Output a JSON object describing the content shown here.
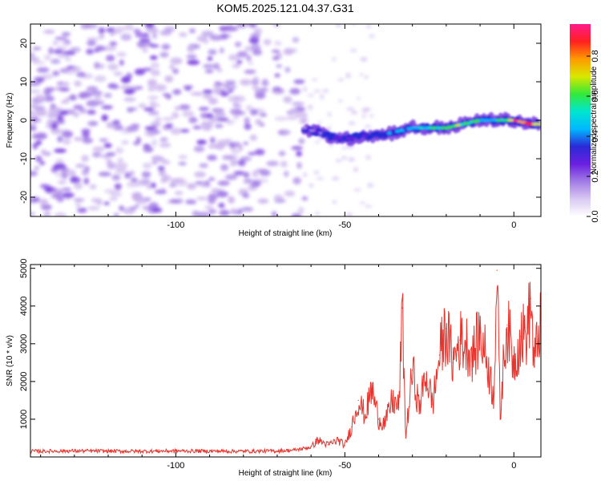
{
  "title": "KOM5.2025.121.04.37.G31",
  "colors": {
    "snr_line": "#e8342c",
    "blob_light": "#cdb6ee",
    "blob_mid": "#a27ce6",
    "blob_dark": "#7a3fe0",
    "track_blue": "#1f2bd6",
    "track_cyan": "#00d6e6",
    "track_green": "#33e83a",
    "track_yellow": "#e8d800",
    "track_red": "#e0122a"
  },
  "colorbar": {
    "label": "Normalized spectral amplitude",
    "ticks": [
      "0.0",
      "0.2",
      "0.4",
      "0.6",
      "0.8"
    ],
    "tick_values": [
      0.0,
      0.2,
      0.4,
      0.6,
      0.8
    ],
    "range": [
      0,
      0.96
    ],
    "palette": [
      "#ffffff",
      "#d9c9f2",
      "#a27ce6",
      "#6a1fe0",
      "#2a2ad6",
      "#00b8ff",
      "#00e6d0",
      "#33e83a",
      "#d8e800",
      "#ff9a00",
      "#ff2020",
      "#ff1a8c"
    ]
  },
  "chart_data": [
    {
      "type": "heatmap",
      "title": "",
      "xlabel": "Height of straight line (km)",
      "ylabel": "Frequency (Hz)",
      "xlim": [
        -143,
        8
      ],
      "ylim": [
        -25,
        25
      ],
      "xticks": [
        -100,
        -50,
        0
      ],
      "xtick_labels": [
        "-100",
        "-50",
        "0"
      ],
      "yticks": [
        -20,
        -10,
        0,
        10,
        20
      ],
      "ytick_labels": [
        "-20",
        "-10",
        "0",
        "10",
        "20"
      ],
      "description_series": [
        {
          "name": "",
          "x": [
            -62,
            -55,
            -50,
            -45,
            -40,
            -35,
            -30,
            -25,
            -20,
            -15,
            -10,
            -5,
            0,
            5,
            8
          ],
          "y": [
            -2,
            -4,
            -5,
            -4,
            -4,
            -3,
            -2,
            -2,
            -2,
            -1,
            0,
            0,
            0,
            -1,
            -1
          ],
          "amplitude": [
            0.2,
            0.3,
            0.3,
            0.35,
            0.4,
            0.45,
            0.5,
            0.55,
            0.65,
            0.7,
            0.6,
            0.5,
            0.95,
            0.9,
            0.85
          ]
        }
      ]
    },
    {
      "type": "line",
      "title": "",
      "xlabel": "Height of straight line (km)",
      "ylabel": "SNR (10 * v/v)",
      "xlim": [
        -143,
        8
      ],
      "ylim": [
        0,
        5100
      ],
      "xticks": [
        -100,
        -50,
        0
      ],
      "xtick_labels": [
        "-100",
        "-50",
        "0"
      ],
      "yticks": [
        1000,
        2000,
        3000,
        4000,
        5000
      ],
      "ytick_labels": [
        "1000",
        "2000",
        "3000",
        "4000",
        "5000"
      ],
      "series": [
        {
          "name": "",
          "x": [
            -143,
            -130,
            -120,
            -110,
            -100,
            -90,
            -80,
            -70,
            -65,
            -60,
            -58,
            -55,
            -52,
            -50,
            -48,
            -46,
            -44,
            -42,
            -40,
            -38,
            -36,
            -34,
            -33,
            -32,
            -30,
            -28,
            -26,
            -24,
            -22,
            -20,
            -18,
            -16,
            -14,
            -12,
            -10,
            -8,
            -6,
            -5,
            -4,
            -3,
            -2,
            0,
            2,
            4,
            5,
            6,
            8
          ],
          "y": [
            150,
            160,
            155,
            150,
            160,
            155,
            150,
            160,
            180,
            260,
            450,
            320,
            450,
            300,
            800,
            1500,
            1100,
            1800,
            1000,
            900,
            1500,
            1300,
            3950,
            500,
            2300,
            1300,
            2200,
            1400,
            2700,
            3400,
            2500,
            3100,
            3000,
            2700,
            3300,
            2600,
            1600,
            4950,
            1000,
            2600,
            3500,
            2500,
            3200,
            3300,
            4200,
            2400,
            3800
          ]
        }
      ]
    }
  ]
}
